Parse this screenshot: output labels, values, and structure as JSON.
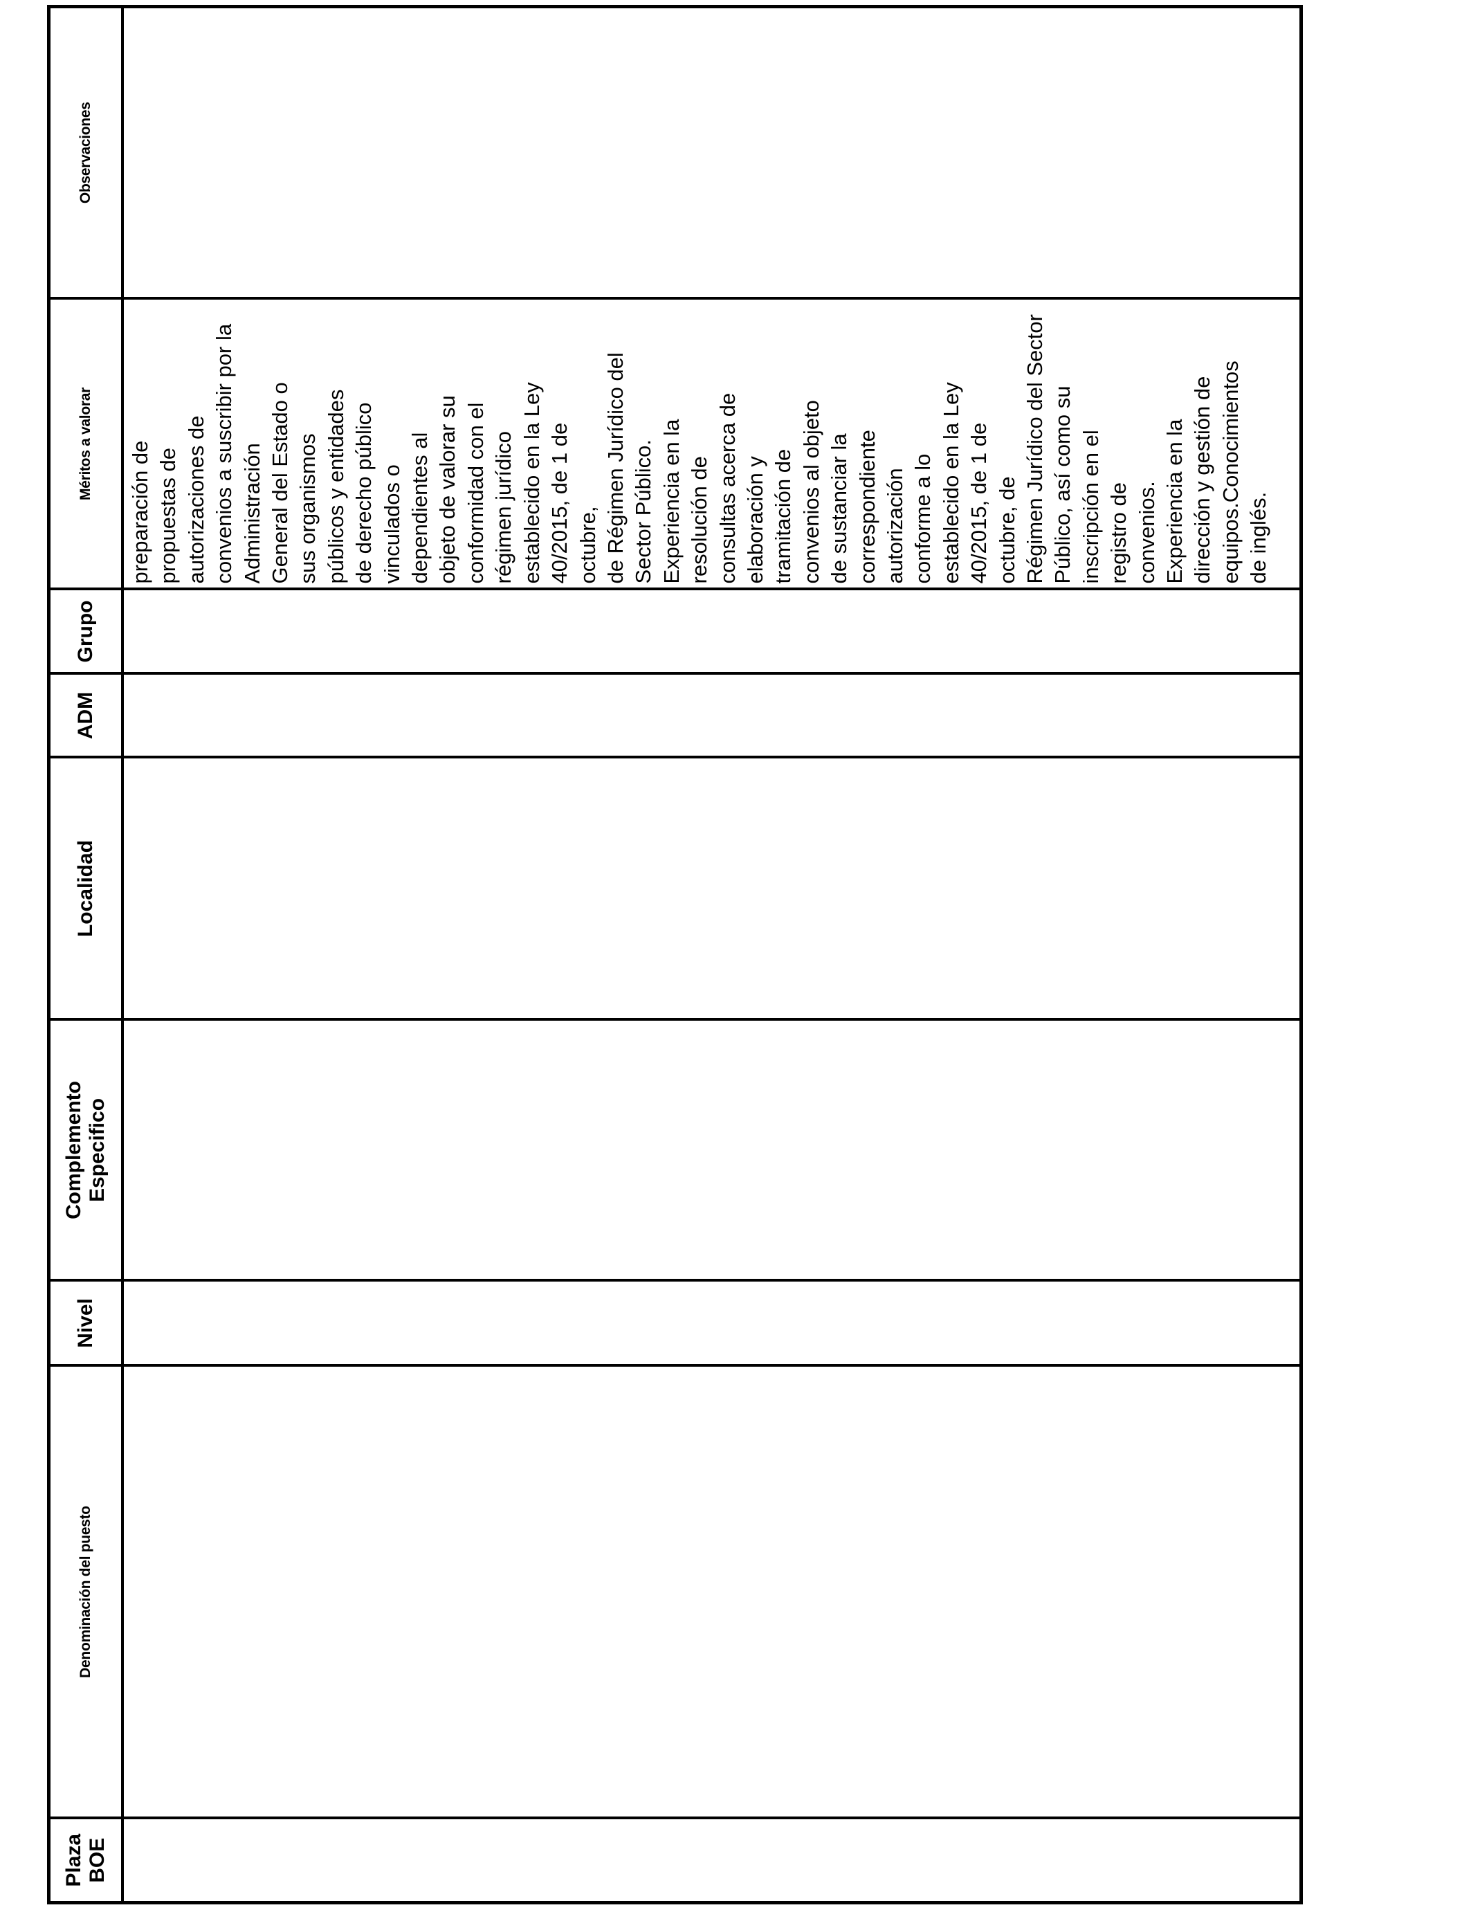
{
  "table": {
    "headers": {
      "plaza": "Plaza\nBOE",
      "denominacion": "Denominación del puesto",
      "nivel": "Nivel",
      "complemento": "Complemento\nEspecifico",
      "localidad": "Localidad",
      "adm": "ADM",
      "grupo": "Grupo",
      "meritos": "Méritos a valorar",
      "observaciones": "Observaciones"
    },
    "row": {
      "plaza": "",
      "denominacion": "",
      "nivel": "",
      "complemento": "",
      "localidad": "",
      "adm": "",
      "grupo": "",
      "meritos": "preparación de\npropuestas de\nautorizaciones de\nconvenios a suscribir por la\nAdministración\nGeneral del Estado o\nsus organismos\npúblicos y entidades\nde derecho público\nvinculados o\ndependientes al\nobjeto de valorar su\nconformidad con el\nrégimen jurídico\nestablecido en la Ley\n40/2015, de 1 de\noctubre,\nde Régimen Jurídico del\nSector Público.\nExperiencia en la\nresolución de\nconsultas acerca de\nelaboración y\ntramitación de\nconvenios al objeto\nde sustanciar la\ncorrespondiente\nautorización\nconforme a lo\nestablecido en la Ley\n40/2015, de 1 de\noctubre, de\nRégimen Jurídico del Sector\nPúblico, así como su\ninscripción en el\nregistro de\nconvenios.\nExperiencia en la\ndirección y gestión de\nequipos.Conocimientos\nde inglés.",
      "observaciones": ""
    }
  }
}
